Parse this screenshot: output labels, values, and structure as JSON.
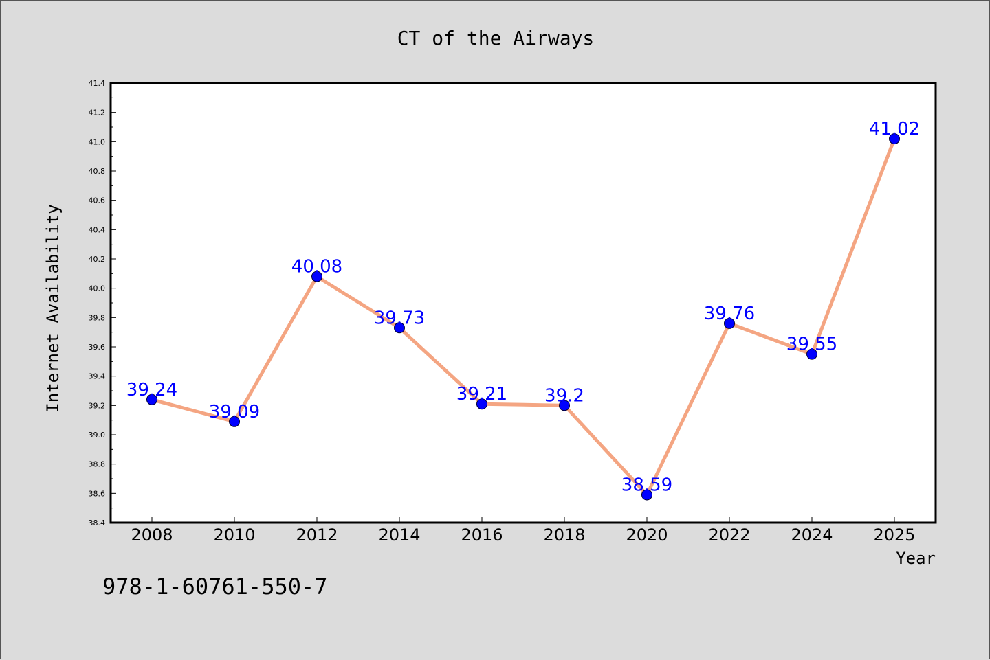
{
  "colors": {
    "background": "#dcdcdc",
    "plot_background": "#ffffff",
    "line": "#f4a582",
    "marker": "#0000ff",
    "data_label": "#0000ff"
  },
  "footer": {
    "isbn": "978-1-60761-550-7"
  },
  "chart_data": {
    "type": "line",
    "title": "CT of the Airways",
    "xlabel": "Year",
    "ylabel": "Internet Availability",
    "categories": [
      "2008",
      "2010",
      "2012",
      "2014",
      "2016",
      "2018",
      "2020",
      "2022",
      "2024",
      "2025"
    ],
    "series": [
      {
        "values": [
          39.24,
          39.09,
          40.08,
          39.73,
          39.21,
          39.2,
          38.59,
          39.76,
          39.55,
          41.02
        ]
      }
    ],
    "data_labels": [
      "39.24",
      "39.09",
      "40.08",
      "39.73",
      "39.21",
      "39.2",
      "38.59",
      "39.76",
      "39.55",
      "41.02"
    ],
    "ylim": [
      38.4,
      41.4
    ],
    "yticks": [
      "38.4",
      "38.6",
      "38.8",
      "39.0",
      "39.2",
      "39.4",
      "39.6",
      "39.8",
      "40.0",
      "40.2",
      "40.4",
      "40.6",
      "40.8",
      "41.0",
      "41.2",
      "41.4"
    ],
    "grid": false,
    "legend": "none"
  }
}
